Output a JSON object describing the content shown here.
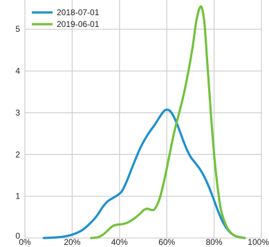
{
  "chart_data": {
    "type": "line",
    "title": "",
    "xlabel": "",
    "ylabel": "",
    "xlim": [
      0,
      100
    ],
    "ylim": [
      0,
      5.7
    ],
    "x_ticks": [
      0,
      20,
      40,
      60,
      80,
      100
    ],
    "x_tick_labels": [
      "0%",
      "20%",
      "40%",
      "60%",
      "80%",
      "100%"
    ],
    "y_ticks": [
      0,
      1,
      2,
      3,
      4,
      5
    ],
    "y_tick_labels": [
      "0",
      "1",
      "2",
      "3",
      "4",
      "5"
    ],
    "grid": true,
    "legend_position": "top-left",
    "series": [
      {
        "name": "2018-07-01",
        "color": "#1f8fd0",
        "points": [
          [
            8,
            0
          ],
          [
            12,
            0.01
          ],
          [
            16,
            0.03
          ],
          [
            20,
            0.08
          ],
          [
            24,
            0.18
          ],
          [
            27,
            0.32
          ],
          [
            30,
            0.5
          ],
          [
            33,
            0.75
          ],
          [
            35,
            0.88
          ],
          [
            37,
            0.95
          ],
          [
            39,
            1.02
          ],
          [
            41,
            1.12
          ],
          [
            43,
            1.35
          ],
          [
            46,
            1.78
          ],
          [
            49,
            2.18
          ],
          [
            52,
            2.48
          ],
          [
            55,
            2.72
          ],
          [
            57,
            2.9
          ],
          [
            59,
            3.05
          ],
          [
            60.5,
            3.07
          ],
          [
            62,
            3.0
          ],
          [
            64,
            2.78
          ],
          [
            66,
            2.48
          ],
          [
            68,
            2.18
          ],
          [
            70,
            1.95
          ],
          [
            72,
            1.8
          ],
          [
            74,
            1.65
          ],
          [
            76,
            1.45
          ],
          [
            78,
            1.2
          ],
          [
            80,
            0.9
          ],
          [
            82,
            0.6
          ],
          [
            84,
            0.35
          ],
          [
            86,
            0.18
          ],
          [
            88,
            0.08
          ],
          [
            90,
            0.03
          ],
          [
            93,
            0
          ]
        ]
      },
      {
        "name": "2019-06-01",
        "color": "#72c13c",
        "points": [
          [
            28,
            0
          ],
          [
            31,
            0.02
          ],
          [
            33,
            0.08
          ],
          [
            35,
            0.18
          ],
          [
            37,
            0.28
          ],
          [
            39,
            0.32
          ],
          [
            41,
            0.33
          ],
          [
            43,
            0.36
          ],
          [
            45,
            0.42
          ],
          [
            47,
            0.5
          ],
          [
            49,
            0.6
          ],
          [
            50.5,
            0.68
          ],
          [
            52,
            0.7
          ],
          [
            53.5,
            0.67
          ],
          [
            55,
            0.7
          ],
          [
            57,
            0.95
          ],
          [
            59,
            1.4
          ],
          [
            61,
            1.95
          ],
          [
            63,
            2.5
          ],
          [
            65,
            2.95
          ],
          [
            67,
            3.4
          ],
          [
            69,
            3.95
          ],
          [
            71,
            4.6
          ],
          [
            72.5,
            5.2
          ],
          [
            74,
            5.52
          ],
          [
            75,
            5.48
          ],
          [
            76,
            5.1
          ],
          [
            77,
            4.3
          ],
          [
            78,
            3.5
          ],
          [
            79,
            2.7
          ],
          [
            80,
            2.0
          ],
          [
            81,
            1.45
          ],
          [
            82,
            1.0
          ],
          [
            83,
            0.65
          ],
          [
            84.5,
            0.38
          ],
          [
            86,
            0.2
          ],
          [
            88,
            0.08
          ],
          [
            90,
            0.03
          ],
          [
            93,
            0
          ]
        ]
      }
    ]
  }
}
